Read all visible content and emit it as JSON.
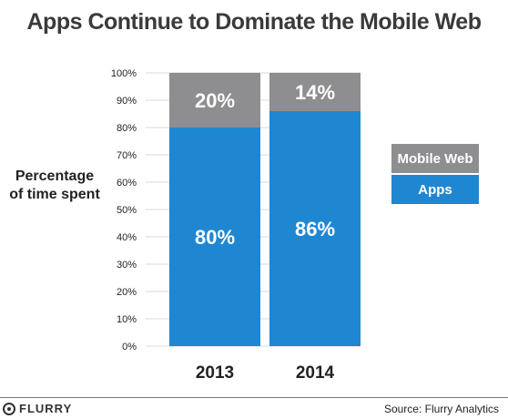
{
  "title": "Apps Continue to Dominate the Mobile Web",
  "ylabel_line1": "Percentage",
  "ylabel_line2": "of time spent",
  "source": "Source: Flurry Analytics",
  "brand": "FLURRY",
  "brand_icon": "flurry-logo-icon",
  "colors": {
    "apps": "#1f87d2",
    "mobile_web": "#8e8e90",
    "grid": "#d9d9d9",
    "text": "#222222"
  },
  "chart_data": {
    "type": "bar",
    "stacked": true,
    "categories": [
      "2013",
      "2014"
    ],
    "series": [
      {
        "name": "Apps",
        "values": [
          80,
          86
        ],
        "labels": [
          "80%",
          "86%"
        ]
      },
      {
        "name": "Mobile Web",
        "values": [
          20,
          14
        ],
        "labels": [
          "20%",
          "14%"
        ]
      }
    ],
    "ylim": [
      0,
      100
    ],
    "yticks": [
      "0%",
      "10%",
      "20%",
      "30%",
      "40%",
      "50%",
      "60%",
      "70%",
      "80%",
      "90%",
      "100%"
    ],
    "grid": true,
    "legend": [
      "Mobile Web",
      "Apps"
    ],
    "legend_position": "right"
  }
}
